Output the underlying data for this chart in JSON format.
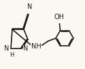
{
  "bg_color": "#faf8f0",
  "bond_color": "#1a1a1a",
  "text_color": "#1a1a1a",
  "bond_width": 1.2,
  "font_size": 7.0,
  "figsize": [
    1.25,
    1.01
  ],
  "dpi": 100,
  "xlim": [
    0,
    125
  ],
  "ylim": [
    0,
    101
  ]
}
